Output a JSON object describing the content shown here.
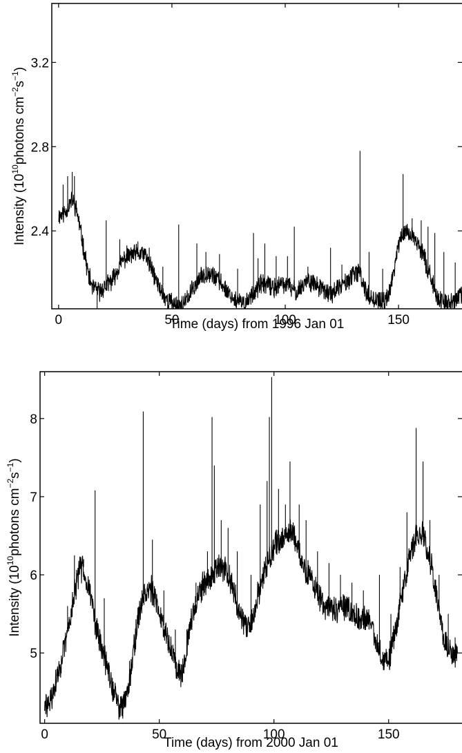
{
  "chart_data": [
    {
      "type": "line",
      "xlabel": "Time (days) from 1996 Jan 01",
      "ylabel": {
        "prefix": "Intensity (10",
        "exp1": "10",
        "mid": "photons cm",
        "exp2": "−2",
        "mid2": "s",
        "exp3": "−1",
        "suffix": ")"
      },
      "xlim": [
        -3,
        178
      ],
      "ylim": [
        2.03,
        3.48
      ],
      "xticks": [
        0,
        50,
        100,
        150
      ],
      "yticks": [
        2.4,
        2.8,
        3.2
      ],
      "grid": false,
      "series": [
        {
          "color": "#000000",
          "baseline": [
            [
              0,
              2.47
            ],
            [
              3,
              2.49
            ],
            [
              6,
              2.55
            ],
            [
              8,
              2.5
            ],
            [
              10,
              2.38
            ],
            [
              13,
              2.2
            ],
            [
              15,
              2.13
            ],
            [
              18,
              2.11
            ],
            [
              21,
              2.14
            ],
            [
              24,
              2.17
            ],
            [
              27,
              2.24
            ],
            [
              30,
              2.28
            ],
            [
              34,
              2.29
            ],
            [
              38,
              2.29
            ],
            [
              41,
              2.22
            ],
            [
              44,
              2.14
            ],
            [
              47,
              2.08
            ],
            [
              50,
              2.06
            ],
            [
              53,
              2.04
            ],
            [
              56,
              2.06
            ],
            [
              59,
              2.12
            ],
            [
              62,
              2.17
            ],
            [
              66,
              2.21
            ],
            [
              70,
              2.17
            ],
            [
              74,
              2.12
            ],
            [
              78,
              2.07
            ],
            [
              82,
              2.05
            ],
            [
              86,
              2.11
            ],
            [
              90,
              2.15
            ],
            [
              95,
              2.13
            ],
            [
              100,
              2.15
            ],
            [
              105,
              2.11
            ],
            [
              110,
              2.17
            ],
            [
              115,
              2.13
            ],
            [
              120,
              2.1
            ],
            [
              125,
              2.14
            ],
            [
              130,
              2.19
            ],
            [
              133,
              2.2
            ],
            [
              136,
              2.1
            ],
            [
              140,
              2.07
            ],
            [
              144,
              2.06
            ],
            [
              147,
              2.15
            ],
            [
              150,
              2.34
            ],
            [
              153,
              2.4
            ],
            [
              157,
              2.37
            ],
            [
              161,
              2.28
            ],
            [
              164,
              2.19
            ],
            [
              167,
              2.08
            ],
            [
              170,
              2.06
            ],
            [
              174,
              2.06
            ],
            [
              178,
              2.1
            ]
          ],
          "spikes": [
            [
              2,
              2.62
            ],
            [
              4,
              2.66
            ],
            [
              6,
              2.68
            ],
            [
              7,
              2.66
            ],
            [
              17,
              2.03
            ],
            [
              21,
              2.45
            ],
            [
              27,
              2.36
            ],
            [
              35,
              2.35
            ],
            [
              40,
              2.32
            ],
            [
              46,
              2.23
            ],
            [
              53,
              2.43
            ],
            [
              61,
              2.34
            ],
            [
              65,
              2.3
            ],
            [
              71,
              2.29
            ],
            [
              79,
              2.22
            ],
            [
              86,
              2.39
            ],
            [
              88,
              2.27
            ],
            [
              91,
              2.34
            ],
            [
              96,
              2.28
            ],
            [
              101,
              2.28
            ],
            [
              104,
              2.42
            ],
            [
              110,
              2.23
            ],
            [
              120,
              2.32
            ],
            [
              125,
              2.24
            ],
            [
              133,
              2.78
            ],
            [
              137,
              2.3
            ],
            [
              143,
              2.22
            ],
            [
              152,
              2.67
            ],
            [
              156,
              2.46
            ],
            [
              160,
              2.45
            ],
            [
              163,
              2.42
            ],
            [
              166,
              2.39
            ],
            [
              170,
              2.3
            ],
            [
              175,
              2.25
            ]
          ]
        }
      ]
    },
    {
      "type": "line",
      "xlabel": "Time (days) from 2000 Jan 01",
      "ylabel": {
        "prefix": "Intensity (10",
        "exp1": "10",
        "mid": "photons cm",
        "exp2": "−2",
        "mid2": "s",
        "exp3": "−1",
        "suffix": ")"
      },
      "xlim": [
        -2,
        182
      ],
      "ylim": [
        4.1,
        8.6
      ],
      "xticks": [
        0,
        50,
        100,
        150
      ],
      "yticks": [
        5,
        6,
        7,
        8
      ],
      "grid": false,
      "series": [
        {
          "color": "#000000",
          "baseline": [
            [
              0,
              4.3
            ],
            [
              3,
              4.4
            ],
            [
              6,
              4.75
            ],
            [
              9,
              5.1
            ],
            [
              12,
              5.6
            ],
            [
              15,
              6.05
            ],
            [
              17,
              6.1
            ],
            [
              20,
              5.75
            ],
            [
              23,
              5.25
            ],
            [
              27,
              4.85
            ],
            [
              30,
              4.5
            ],
            [
              32,
              4.35
            ],
            [
              34,
              4.3
            ],
            [
              37,
              4.65
            ],
            [
              40,
              5.3
            ],
            [
              43,
              5.75
            ],
            [
              46,
              5.85
            ],
            [
              49,
              5.6
            ],
            [
              52,
              5.35
            ],
            [
              55,
              5.05
            ],
            [
              58,
              4.8
            ],
            [
              60,
              4.75
            ],
            [
              63,
              5.3
            ],
            [
              66,
              5.65
            ],
            [
              69,
              5.85
            ],
            [
              72,
              5.95
            ],
            [
              76,
              6.1
            ],
            [
              79,
              6.05
            ],
            [
              82,
              5.85
            ],
            [
              85,
              5.5
            ],
            [
              88,
              5.3
            ],
            [
              90,
              5.35
            ],
            [
              93,
              5.75
            ],
            [
              97,
              6.15
            ],
            [
              101,
              6.4
            ],
            [
              105,
              6.5
            ],
            [
              108,
              6.55
            ],
            [
              110,
              6.4
            ],
            [
              113,
              6.1
            ],
            [
              116,
              5.95
            ],
            [
              119,
              5.75
            ],
            [
              122,
              5.6
            ],
            [
              126,
              5.55
            ],
            [
              130,
              5.6
            ],
            [
              134,
              5.5
            ],
            [
              138,
              5.4
            ],
            [
              141,
              5.45
            ],
            [
              144,
              5.2
            ],
            [
              147,
              4.95
            ],
            [
              150,
              4.9
            ],
            [
              153,
              5.3
            ],
            [
              156,
              5.75
            ],
            [
              159,
              6.2
            ],
            [
              162,
              6.5
            ],
            [
              165,
              6.55
            ],
            [
              168,
              6.2
            ],
            [
              171,
              5.7
            ],
            [
              174,
              5.2
            ],
            [
              177,
              5.0
            ],
            [
              180,
              5.0
            ]
          ],
          "spikes": [
            [
              4,
              4.6
            ],
            [
              10,
              5.6
            ],
            [
              13,
              6.25
            ],
            [
              17,
              6.2
            ],
            [
              22,
              7.08
            ],
            [
              26,
              5.7
            ],
            [
              37,
              4.9
            ],
            [
              43,
              8.09
            ],
            [
              47,
              6.45
            ],
            [
              52,
              5.8
            ],
            [
              57,
              5.3
            ],
            [
              62,
              5.3
            ],
            [
              66,
              5.9
            ],
            [
              71,
              6.3
            ],
            [
              73,
              8.02
            ],
            [
              74,
              7.4
            ],
            [
              77,
              6.7
            ],
            [
              80,
              6.6
            ],
            [
              84,
              6.3
            ],
            [
              90,
              6.0
            ],
            [
              94,
              6.9
            ],
            [
              97,
              7.2
            ],
            [
              98,
              8.02
            ],
            [
              99,
              8.53
            ],
            [
              102,
              7.1
            ],
            [
              105,
              6.9
            ],
            [
              107,
              7.45
            ],
            [
              111,
              6.9
            ],
            [
              114,
              6.7
            ],
            [
              119,
              6.3
            ],
            [
              124,
              6.15
            ],
            [
              129,
              6.0
            ],
            [
              134,
              5.9
            ],
            [
              139,
              5.8
            ],
            [
              146,
              6.0
            ],
            [
              151,
              5.5
            ],
            [
              155,
              6.1
            ],
            [
              158,
              6.8
            ],
            [
              162,
              7.88
            ],
            [
              165,
              7.45
            ],
            [
              168,
              6.7
            ],
            [
              172,
              6.0
            ],
            [
              176,
              5.5
            ],
            [
              179,
              5.2
            ]
          ]
        }
      ]
    }
  ]
}
